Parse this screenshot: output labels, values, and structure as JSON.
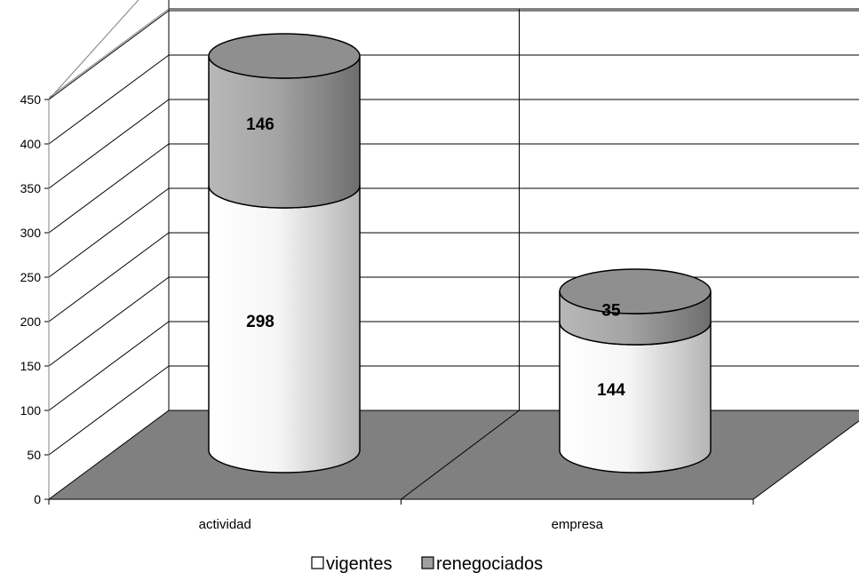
{
  "chart_data": {
    "type": "bar",
    "stacked": true,
    "style": "3d-cylinder",
    "categories": [
      "actividad",
      "empresa"
    ],
    "series": [
      {
        "name": "vigentes",
        "values": [
          298,
          144
        ],
        "color": "#f0f0f0"
      },
      {
        "name": "renegociados",
        "values": [
          146,
          35
        ],
        "color": "#a0a0a0"
      }
    ],
    "y_ticks": [
      "0",
      "50",
      "100",
      "150",
      "200",
      "250",
      "300",
      "350",
      "400",
      "450"
    ],
    "ylim": [
      0,
      450
    ],
    "floor_color": "#808080",
    "grid": true,
    "legend": "bottom-center"
  }
}
